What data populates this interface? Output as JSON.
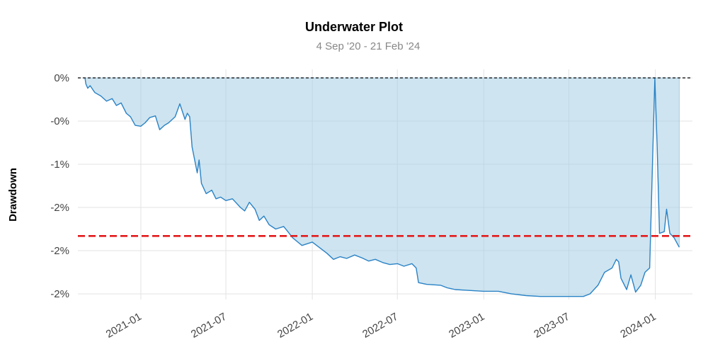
{
  "chart_data": {
    "type": "area",
    "title": "Underwater Plot",
    "subtitle": "4 Sep '20 - 21 Feb '24",
    "ylabel": "Drawdown",
    "xlabel": "",
    "x_range": [
      "2020-08-20",
      "2024-03-20"
    ],
    "ylim": [
      -0.02565,
      0.0
    ],
    "y_ticks": [
      {
        "value": 0.0,
        "label": "0%"
      },
      {
        "value": -0.005,
        "label": "-0%"
      },
      {
        "value": -0.01,
        "label": "-1%"
      },
      {
        "value": -0.015,
        "label": "-2%"
      },
      {
        "value": -0.02,
        "label": "-2%"
      },
      {
        "value": -0.025,
        "label": "-2%"
      }
    ],
    "x_ticks": [
      {
        "value": "2021-01-01",
        "label": "2021-01"
      },
      {
        "value": "2021-07-01",
        "label": "2021-07"
      },
      {
        "value": "2022-01-01",
        "label": "2022-01"
      },
      {
        "value": "2022-07-01",
        "label": "2022-07"
      },
      {
        "value": "2023-01-01",
        "label": "2023-01"
      },
      {
        "value": "2023-07-01",
        "label": "2023-07"
      },
      {
        "value": "2024-01-01",
        "label": "2024-01"
      }
    ],
    "zero_line": {
      "value": 0.0,
      "color": "#000000",
      "style": "dashed"
    },
    "average_drawdown_line": {
      "value": -0.0183,
      "color": "#e41a1c",
      "style": "dashed"
    },
    "grid": true,
    "series": [
      {
        "line_color": "#2b83c6",
        "fill_color": "#a6cee3",
        "points": [
          [
            "2020-09-04",
            0.0
          ],
          [
            "2020-09-06",
            -0.0007
          ],
          [
            "2020-09-10",
            -0.0012
          ],
          [
            "2020-09-15",
            -0.0009
          ],
          [
            "2020-09-25",
            -0.0017
          ],
          [
            "2020-10-08",
            -0.0021
          ],
          [
            "2020-10-20",
            -0.0027
          ],
          [
            "2020-11-01",
            -0.0024
          ],
          [
            "2020-11-10",
            -0.0032
          ],
          [
            "2020-11-20",
            -0.0029
          ],
          [
            "2020-12-01",
            -0.0041
          ],
          [
            "2020-12-10",
            -0.0045
          ],
          [
            "2020-12-20",
            -0.0055
          ],
          [
            "2021-01-01",
            -0.0056
          ],
          [
            "2021-01-10",
            -0.0052
          ],
          [
            "2021-01-20",
            -0.0046
          ],
          [
            "2021-02-01",
            -0.0044
          ],
          [
            "2021-02-10",
            -0.006
          ],
          [
            "2021-02-20",
            -0.0055
          ],
          [
            "2021-03-01",
            -0.0052
          ],
          [
            "2021-03-15",
            -0.0045
          ],
          [
            "2021-03-25",
            -0.003
          ],
          [
            "2021-04-05",
            -0.0048
          ],
          [
            "2021-04-10",
            -0.0041
          ],
          [
            "2021-04-15",
            -0.0045
          ],
          [
            "2021-04-20",
            -0.008
          ],
          [
            "2021-05-01",
            -0.011
          ],
          [
            "2021-05-05",
            -0.0095
          ],
          [
            "2021-05-10",
            -0.0122
          ],
          [
            "2021-05-20",
            -0.0134
          ],
          [
            "2021-06-01",
            -0.013
          ],
          [
            "2021-06-10",
            -0.014
          ],
          [
            "2021-06-20",
            -0.0138
          ],
          [
            "2021-07-01",
            -0.0142
          ],
          [
            "2021-07-15",
            -0.014
          ],
          [
            "2021-08-01",
            -0.015
          ],
          [
            "2021-08-10",
            -0.0154
          ],
          [
            "2021-08-20",
            -0.0144
          ],
          [
            "2021-09-01",
            -0.0152
          ],
          [
            "2021-09-10",
            -0.0165
          ],
          [
            "2021-09-20",
            -0.016
          ],
          [
            "2021-10-01",
            -0.017
          ],
          [
            "2021-10-15",
            -0.0175
          ],
          [
            "2021-11-01",
            -0.0172
          ],
          [
            "2021-11-10",
            -0.0178
          ],
          [
            "2021-11-20",
            -0.0185
          ],
          [
            "2021-12-01",
            -0.019
          ],
          [
            "2021-12-10",
            -0.0194
          ],
          [
            "2022-01-01",
            -0.019
          ],
          [
            "2022-01-20",
            -0.0198
          ],
          [
            "2022-02-01",
            -0.0203
          ],
          [
            "2022-02-15",
            -0.021
          ],
          [
            "2022-03-01",
            -0.0207
          ],
          [
            "2022-03-15",
            -0.0209
          ],
          [
            "2022-04-01",
            -0.0205
          ],
          [
            "2022-04-15",
            -0.0208
          ],
          [
            "2022-05-01",
            -0.0212
          ],
          [
            "2022-05-15",
            -0.021
          ],
          [
            "2022-06-01",
            -0.0214
          ],
          [
            "2022-06-15",
            -0.0216
          ],
          [
            "2022-07-01",
            -0.0215
          ],
          [
            "2022-07-15",
            -0.0218
          ],
          [
            "2022-08-01",
            -0.0215
          ],
          [
            "2022-08-10",
            -0.022
          ],
          [
            "2022-08-15",
            -0.0237
          ],
          [
            "2022-09-01",
            -0.0239
          ],
          [
            "2022-10-01",
            -0.024
          ],
          [
            "2022-10-15",
            -0.0243
          ],
          [
            "2022-11-01",
            -0.0245
          ],
          [
            "2022-12-01",
            -0.0246
          ],
          [
            "2023-01-01",
            -0.0247
          ],
          [
            "2023-02-01",
            -0.0247
          ],
          [
            "2023-03-01",
            -0.025
          ],
          [
            "2023-04-01",
            -0.0252
          ],
          [
            "2023-05-01",
            -0.0253
          ],
          [
            "2023-06-01",
            -0.0253
          ],
          [
            "2023-07-01",
            -0.0253
          ],
          [
            "2023-08-01",
            -0.0253
          ],
          [
            "2023-08-15",
            -0.025
          ],
          [
            "2023-09-01",
            -0.024
          ],
          [
            "2023-09-15",
            -0.0225
          ],
          [
            "2023-10-01",
            -0.022
          ],
          [
            "2023-10-10",
            -0.021
          ],
          [
            "2023-10-15",
            -0.0213
          ],
          [
            "2023-10-20",
            -0.0232
          ],
          [
            "2023-11-01",
            -0.0245
          ],
          [
            "2023-11-10",
            -0.0228
          ],
          [
            "2023-11-20",
            -0.0248
          ],
          [
            "2023-12-01",
            -0.024
          ],
          [
            "2023-12-10",
            -0.0225
          ],
          [
            "2023-12-20",
            -0.022
          ],
          [
            "2023-12-31",
            0.0
          ],
          [
            "2024-01-05",
            -0.008
          ],
          [
            "2024-01-10",
            -0.018
          ],
          [
            "2024-01-20",
            -0.0178
          ],
          [
            "2024-01-25",
            -0.0152
          ],
          [
            "2024-02-01",
            -0.018
          ],
          [
            "2024-02-10",
            -0.0185
          ],
          [
            "2024-02-21",
            -0.0196
          ]
        ]
      }
    ]
  }
}
